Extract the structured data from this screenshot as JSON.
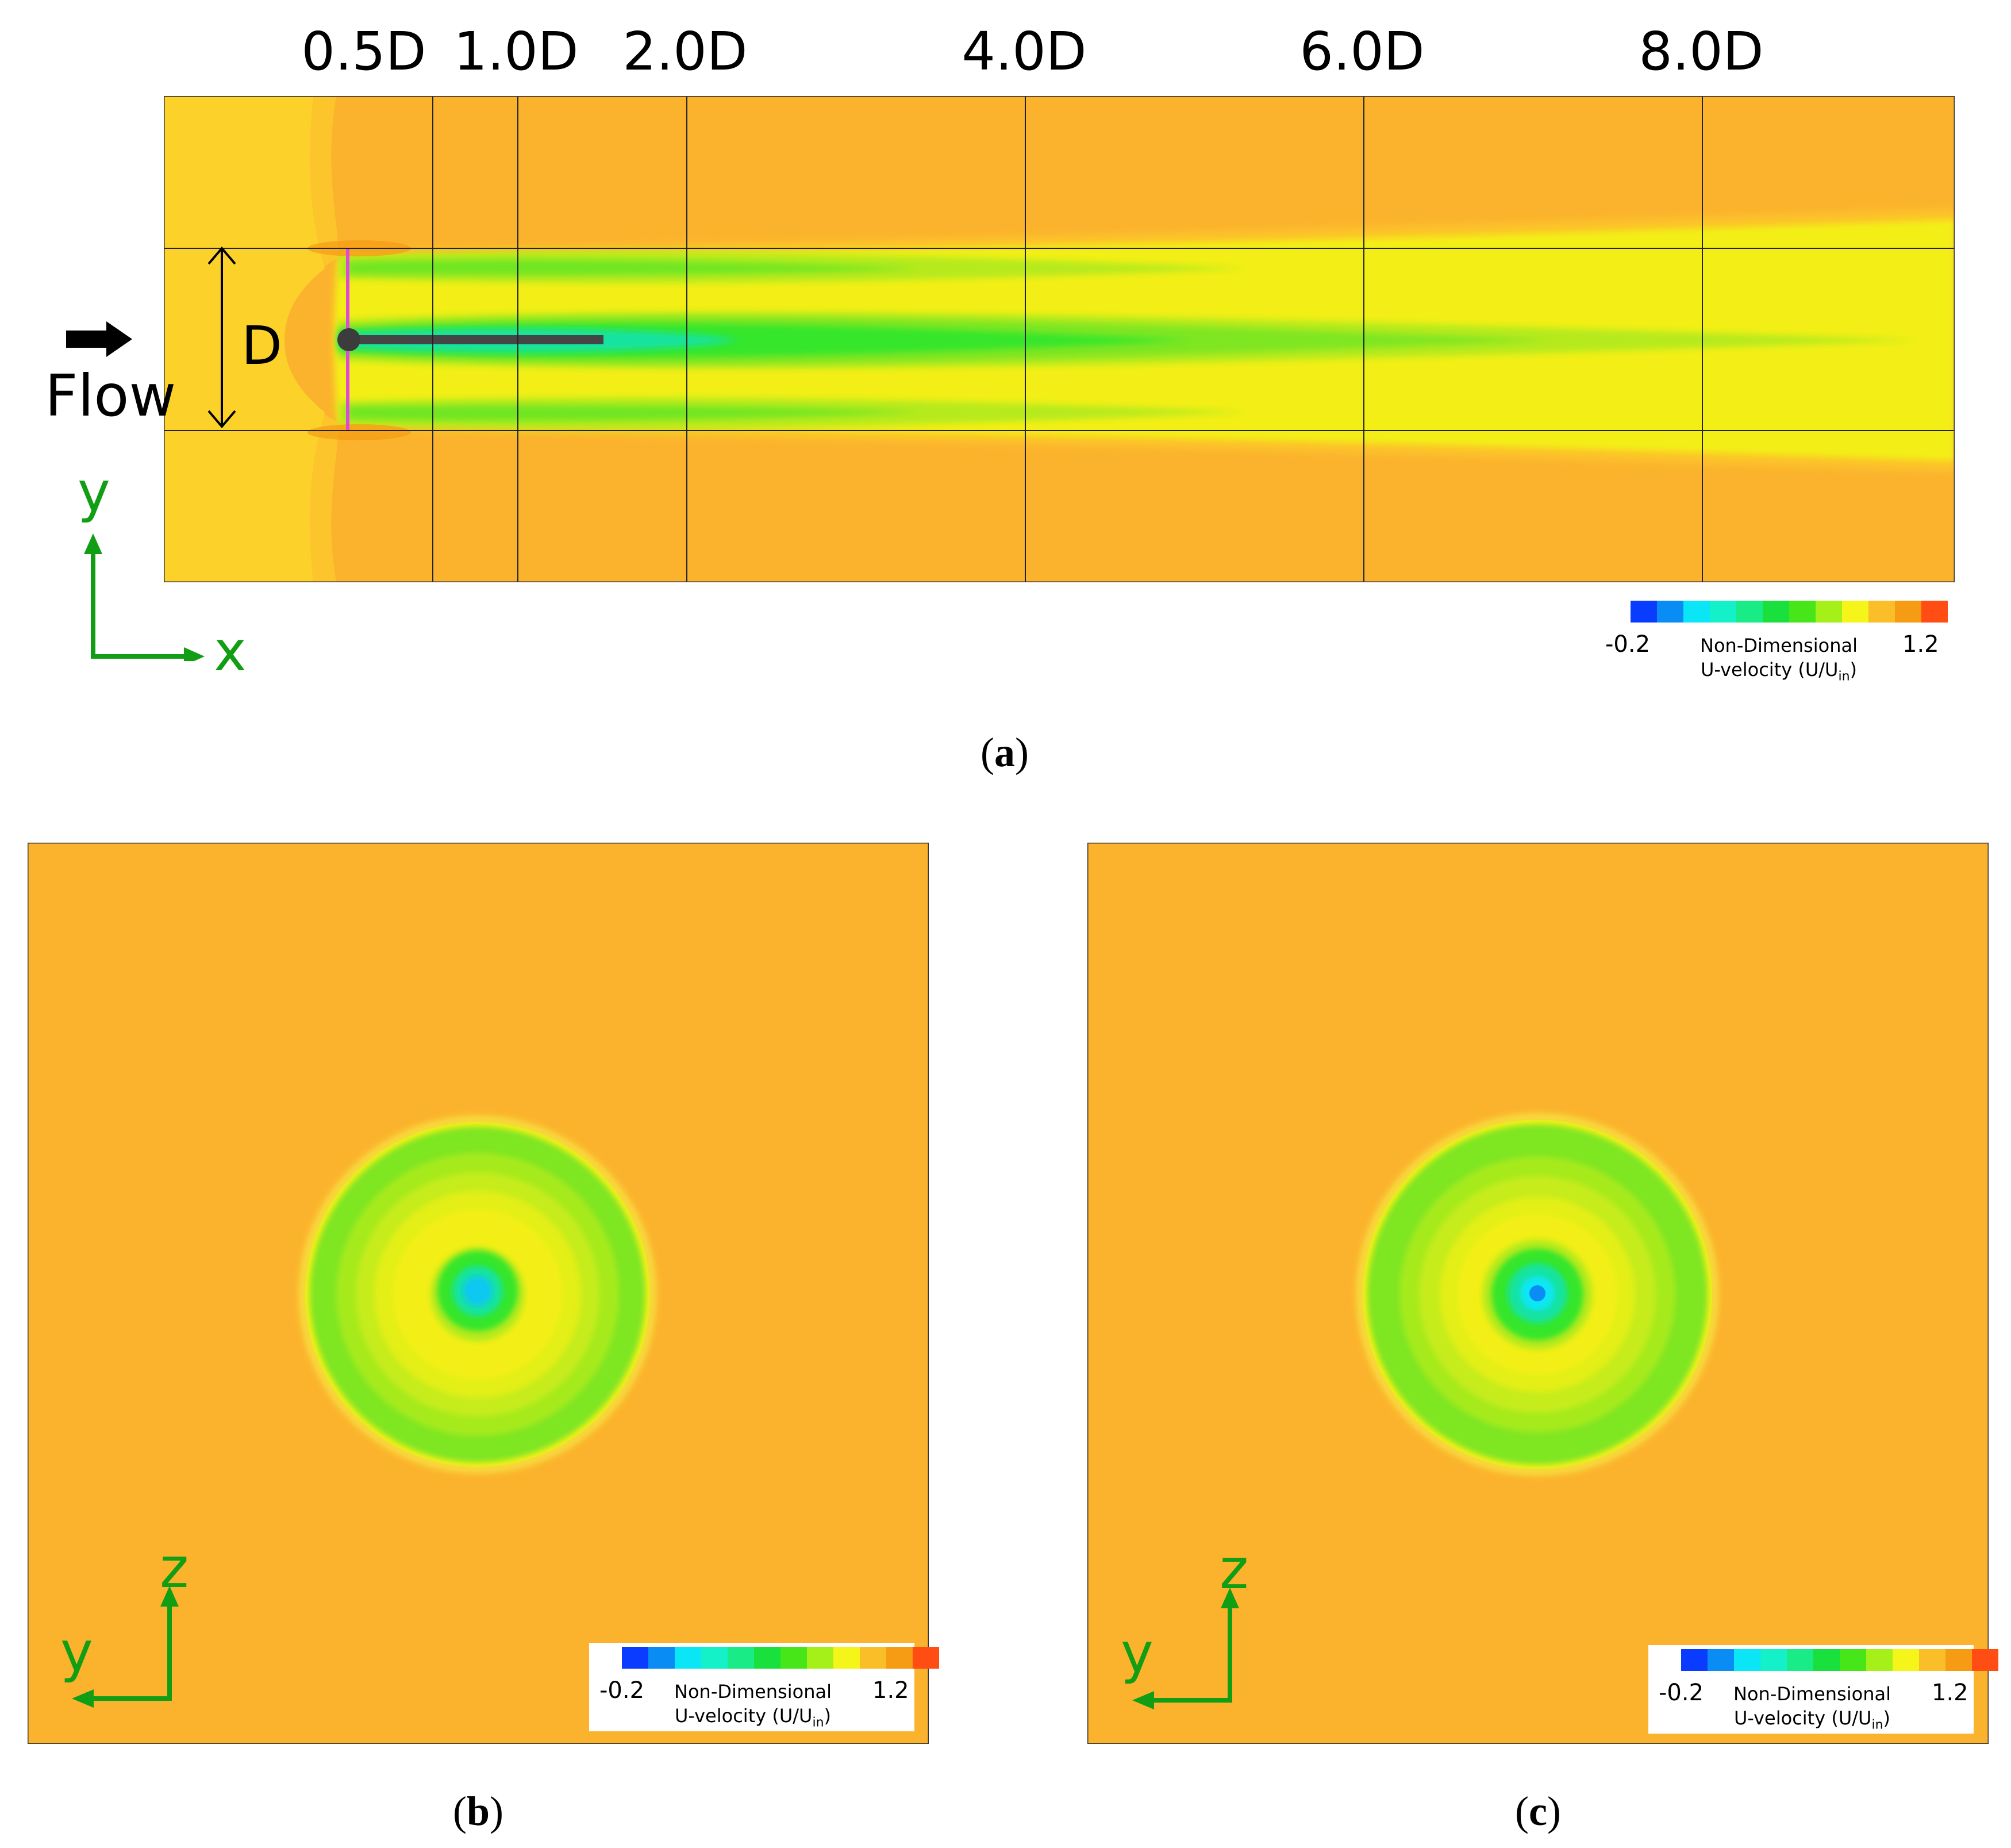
{
  "panel_a": {
    "stations": [
      "0.5D",
      "1.0D",
      "2.0D",
      "4.0D",
      "6.0D",
      "8.0D"
    ],
    "flow_label": "Flow",
    "diameter_label": "D",
    "axis_labels": {
      "vertical": "y",
      "horizontal": "x"
    },
    "caption": {
      "open": "(",
      "letter": "a",
      "close": ")"
    }
  },
  "panel_b": {
    "axis_labels": {
      "vertical": "z",
      "horizontal": "y"
    },
    "caption": {
      "open": "(",
      "letter": "b",
      "close": ")"
    }
  },
  "panel_c": {
    "axis_labels": {
      "vertical": "z",
      "horizontal": "y"
    },
    "caption": {
      "open": "(",
      "letter": "c",
      "close": ")"
    }
  },
  "legend": {
    "min": "-0.2",
    "max": "1.2",
    "title_line1": "Non-Dimensional",
    "title_line2_prefix": "U-velocity (U/U",
    "title_line2_sub": "in",
    "title_line2_suffix": ")",
    "colors": [
      "#0a3cff",
      "#0a8cf5",
      "#0ae6f5",
      "#14f0c8",
      "#19eb87",
      "#19e03c",
      "#46e619",
      "#a5f019",
      "#f5f519",
      "#fabf28",
      "#f59b14",
      "#ff4d14"
    ]
  },
  "colors": {
    "freestream": "#fbb32d",
    "inflow": "#fcd22a",
    "wake_yellow": "#f3ef19",
    "wake_green": "#27e62a",
    "axis_green": "#119e14",
    "rotor_line": "#e048d8"
  }
}
